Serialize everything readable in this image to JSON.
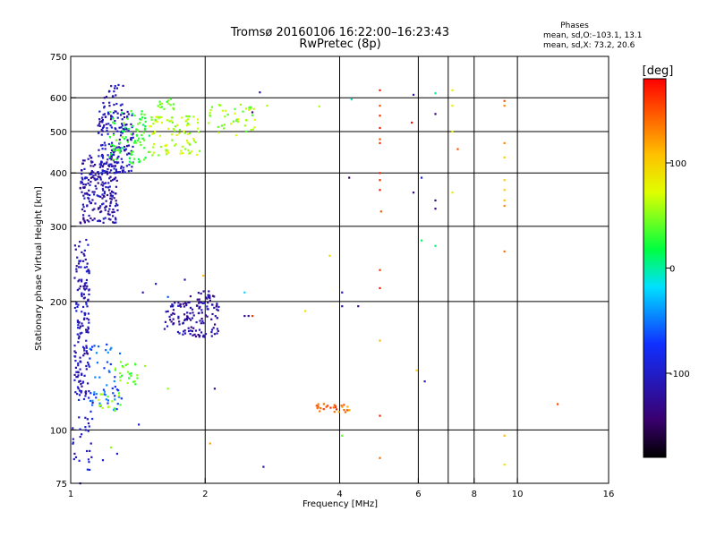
{
  "chart_data": {
    "type": "scatter",
    "title": "Tromsø 20160106 16:22:00–16:23:43",
    "subtitle": "RwPretec (8p)",
    "stats": {
      "heading": "Phases",
      "line_o": "mean, sd,O:–103.1, 13.1",
      "line_x": "mean, sd,X:  73.2, 20.6"
    },
    "xlabel": "Frequency [MHz]",
    "ylabel": "Stationary phase Virtual Height [km]",
    "x_scale": "log",
    "y_scale": "log",
    "xlim": [
      1,
      16
    ],
    "ylim": [
      75,
      750
    ],
    "x_ticks": [
      1,
      2,
      4,
      6,
      8,
      10,
      16
    ],
    "x_tick_labels": [
      "1",
      "2",
      "4",
      "6",
      "8",
      "10",
      "16"
    ],
    "x_grid": [
      2,
      4,
      6,
      7,
      8,
      10
    ],
    "y_ticks": [
      75,
      100,
      200,
      300,
      400,
      500,
      600,
      750
    ],
    "y_tick_labels": [
      "75",
      "100",
      "200",
      "300",
      "400",
      "500",
      "600",
      "750"
    ],
    "y_grid": [
      100,
      200,
      300,
      400,
      500,
      600
    ],
    "grid": true,
    "colorbar": {
      "label": "[deg]",
      "min": -180,
      "max": 180,
      "ticks": [
        -100,
        0,
        100
      ],
      "tick_labels": [
        "-100",
        "0",
        "100"
      ],
      "colormap": "rainbow"
    },
    "clusters": [
      {
        "f": [
          1.02,
          1.1
        ],
        "h": [
          120,
          280
        ],
        "phase": -110,
        "n": 160
      },
      {
        "f": [
          1.01,
          1.12
        ],
        "h": [
          80,
          130
        ],
        "phase": -95,
        "n": 35
      },
      {
        "f": [
          1.05,
          1.28
        ],
        "h": [
          305,
          440
        ],
        "phase": -115,
        "n": 220
      },
      {
        "f": [
          1.15,
          1.38
        ],
        "h": [
          400,
          560
        ],
        "phase": -105,
        "n": 170
      },
      {
        "f": [
          1.18,
          1.32
        ],
        "h": [
          560,
          645
        ],
        "phase": -110,
        "n": 25
      },
      {
        "f": [
          1.22,
          1.5
        ],
        "h": [
          420,
          560
        ],
        "phase": 30,
        "n": 90
      },
      {
        "f": [
          1.5,
          1.95
        ],
        "h": [
          440,
          545
        ],
        "phase": 60,
        "n": 90
      },
      {
        "f": [
          1.55,
          1.7
        ],
        "h": [
          560,
          600
        ],
        "phase": 40,
        "n": 15
      },
      {
        "f": [
          2.0,
          2.6
        ],
        "h": [
          490,
          580
        ],
        "phase": 55,
        "n": 45
      },
      {
        "f": [
          1.62,
          2.15
        ],
        "h": [
          165,
          200
        ],
        "phase": -118,
        "n": 130
      },
      {
        "f": [
          1.85,
          2.1
        ],
        "h": [
          200,
          212
        ],
        "phase": -125,
        "n": 18
      },
      {
        "f": [
          1.1,
          1.3
        ],
        "h": [
          110,
          160
        ],
        "phase": -60,
        "n": 55
      },
      {
        "f": [
          1.25,
          1.5
        ],
        "h": [
          128,
          145
        ],
        "phase": 40,
        "n": 25
      },
      {
        "f": [
          1.15,
          1.3
        ],
        "h": [
          110,
          122
        ],
        "phase": 50,
        "n": 15
      },
      {
        "f": [
          3.55,
          3.95
        ],
        "h": [
          110,
          116
        ],
        "phase": 145,
        "n": 18
      },
      {
        "f": [
          3.95,
          4.25
        ],
        "h": [
          110,
          115
        ],
        "phase": 130,
        "n": 10
      }
    ],
    "points": [
      {
        "f": 4.92,
        "h": 625,
        "phase": 170
      },
      {
        "f": 4.92,
        "h": 575,
        "phase": 150
      },
      {
        "f": 4.92,
        "h": 545,
        "phase": 165
      },
      {
        "f": 4.92,
        "h": 510,
        "phase": 170
      },
      {
        "f": 4.92,
        "h": 480,
        "phase": 150
      },
      {
        "f": 4.92,
        "h": 470,
        "phase": 160
      },
      {
        "f": 4.92,
        "h": 400,
        "phase": 170
      },
      {
        "f": 4.92,
        "h": 385,
        "phase": 165
      },
      {
        "f": 4.92,
        "h": 365,
        "phase": 170
      },
      {
        "f": 4.95,
        "h": 325,
        "phase": 150
      },
      {
        "f": 4.92,
        "h": 237,
        "phase": 160
      },
      {
        "f": 4.92,
        "h": 215,
        "phase": 170
      },
      {
        "f": 4.92,
        "h": 162,
        "phase": 110
      },
      {
        "f": 4.92,
        "h": 108,
        "phase": 170
      },
      {
        "f": 4.92,
        "h": 86,
        "phase": 140
      },
      {
        "f": 5.85,
        "h": 610,
        "phase": -110
      },
      {
        "f": 5.8,
        "h": 525,
        "phase": 175
      },
      {
        "f": 5.85,
        "h": 360,
        "phase": -130
      },
      {
        "f": 6.1,
        "h": 390,
        "phase": -100
      },
      {
        "f": 6.1,
        "h": 278,
        "phase": 10
      },
      {
        "f": 5.95,
        "h": 138,
        "phase": 100
      },
      {
        "f": 6.2,
        "h": 130,
        "phase": -110
      },
      {
        "f": 6.55,
        "h": 615,
        "phase": 5
      },
      {
        "f": 6.55,
        "h": 550,
        "phase": -140
      },
      {
        "f": 6.55,
        "h": 345,
        "phase": -130
      },
      {
        "f": 6.55,
        "h": 330,
        "phase": -140
      },
      {
        "f": 6.55,
        "h": 270,
        "phase": 10
      },
      {
        "f": 7.15,
        "h": 625,
        "phase": 80
      },
      {
        "f": 7.15,
        "h": 575,
        "phase": 80
      },
      {
        "f": 7.15,
        "h": 500,
        "phase": 80
      },
      {
        "f": 7.15,
        "h": 360,
        "phase": 80
      },
      {
        "f": 7.35,
        "h": 455,
        "phase": 150
      },
      {
        "f": 9.35,
        "h": 590,
        "phase": 150
      },
      {
        "f": 9.35,
        "h": 575,
        "phase": 130
      },
      {
        "f": 9.35,
        "h": 470,
        "phase": 130
      },
      {
        "f": 9.35,
        "h": 435,
        "phase": 100
      },
      {
        "f": 9.35,
        "h": 385,
        "phase": 100
      },
      {
        "f": 9.35,
        "h": 365,
        "phase": 100
      },
      {
        "f": 9.35,
        "h": 345,
        "phase": 110
      },
      {
        "f": 9.35,
        "h": 335,
        "phase": 130
      },
      {
        "f": 9.35,
        "h": 262,
        "phase": 140
      },
      {
        "f": 9.35,
        "h": 97,
        "phase": 110
      },
      {
        "f": 9.35,
        "h": 83,
        "phase": 90
      },
      {
        "f": 12.3,
        "h": 115,
        "phase": 155
      },
      {
        "f": 4.25,
        "h": 595,
        "phase": -10
      },
      {
        "f": 4.2,
        "h": 390,
        "phase": -150
      },
      {
        "f": 4.05,
        "h": 210,
        "phase": -110
      },
      {
        "f": 4.05,
        "h": 195,
        "phase": -120
      },
      {
        "f": 4.4,
        "h": 195,
        "phase": -130
      },
      {
        "f": 4.05,
        "h": 97,
        "phase": 40
      },
      {
        "f": 3.6,
        "h": 573,
        "phase": 60
      },
      {
        "f": 3.8,
        "h": 256,
        "phase": 95
      },
      {
        "f": 3.35,
        "h": 190,
        "phase": 90
      },
      {
        "f": 2.65,
        "h": 618,
        "phase": -120
      },
      {
        "f": 2.55,
        "h": 555,
        "phase": -130
      },
      {
        "f": 2.75,
        "h": 575,
        "phase": 60
      },
      {
        "f": 2.45,
        "h": 210,
        "phase": -20
      },
      {
        "f": 2.45,
        "h": 185,
        "phase": -130
      },
      {
        "f": 2.5,
        "h": 185,
        "phase": -120
      },
      {
        "f": 2.55,
        "h": 185,
        "phase": 160
      },
      {
        "f": 2.05,
        "h": 93,
        "phase": 120
      },
      {
        "f": 2.1,
        "h": 125,
        "phase": -120
      },
      {
        "f": 2.7,
        "h": 82,
        "phase": -120
      },
      {
        "f": 1.98,
        "h": 230,
        "phase": 110
      },
      {
        "f": 1.8,
        "h": 225,
        "phase": -120
      },
      {
        "f": 1.55,
        "h": 220,
        "phase": -100
      },
      {
        "f": 1.45,
        "h": 210,
        "phase": -110
      },
      {
        "f": 1.65,
        "h": 205,
        "phase": -60
      },
      {
        "f": 1.65,
        "h": 125,
        "phase": 50
      },
      {
        "f": 1.42,
        "h": 103,
        "phase": -100
      },
      {
        "f": 1.18,
        "h": 85,
        "phase": -100
      },
      {
        "f": 1.23,
        "h": 91,
        "phase": 50
      },
      {
        "f": 1.27,
        "h": 88,
        "phase": -100
      },
      {
        "f": 1.11,
        "h": 93,
        "phase": -110
      },
      {
        "f": 1.08,
        "h": 100,
        "phase": -110
      },
      {
        "f": 1.05,
        "h": 75,
        "phase": -120
      },
      {
        "f": 1.02,
        "h": 88,
        "phase": -130
      },
      {
        "f": 1.01,
        "h": 101,
        "phase": -110
      }
    ]
  }
}
